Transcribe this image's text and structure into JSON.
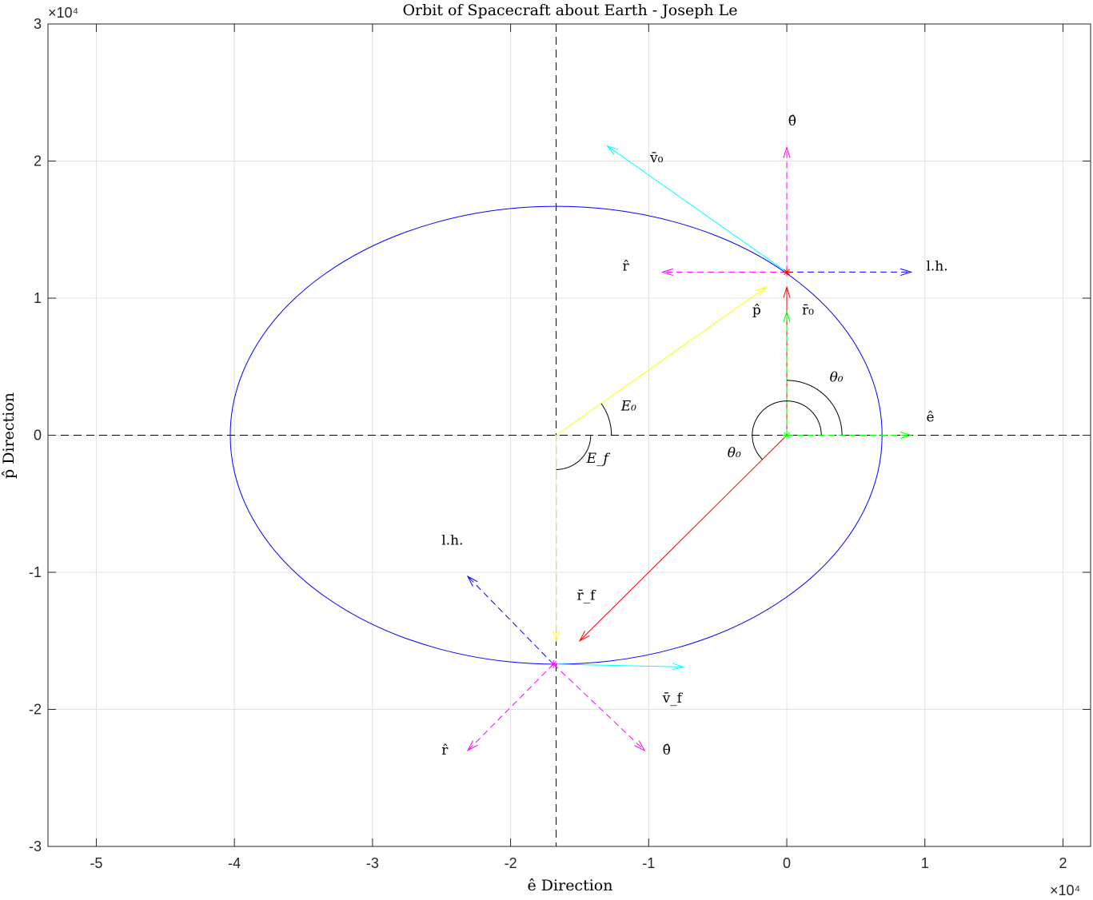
{
  "chart_data": {
    "type": "line",
    "title": "Orbit of Spacecraft about Earth - Joseph Le",
    "xlabel": "ê Direction",
    "ylabel": "p̂ Direction",
    "x_exponent_label": "×10⁴",
    "y_exponent_label": "×10⁴",
    "xlim": [
      -53500,
      22000
    ],
    "ylim": [
      -30000,
      30000
    ],
    "grid": true,
    "xticks": [
      -50000,
      -40000,
      -30000,
      -20000,
      -10000,
      0,
      10000,
      20000
    ],
    "xtick_labels": [
      "-5",
      "-4",
      "-3",
      "-2",
      "-1",
      "0",
      "1",
      "2"
    ],
    "yticks": [
      -30000,
      -20000,
      -10000,
      0,
      10000,
      20000,
      30000
    ],
    "ytick_labels": [
      "-3",
      "-2",
      "-1",
      "0",
      "1",
      "2",
      "3"
    ],
    "orbit": {
      "center_x": -16700,
      "center_y": 0,
      "semi_major": 23600,
      "semi_minor": 16700,
      "color": "#0000ff"
    },
    "axes_lines": [
      {
        "name": "e-axis",
        "x": [
          -53500,
          22000
        ],
        "y": [
          0,
          0
        ],
        "color": "#000000",
        "dashed": true
      },
      {
        "name": "p-axis",
        "x": [
          -16700,
          -16700
        ],
        "y": [
          30000,
          -30000
        ],
        "color": "#000000",
        "dashed": true
      }
    ],
    "markers": [
      {
        "name": "focus",
        "x": 0,
        "y": 0,
        "color": "#00ff00"
      },
      {
        "name": "initial-position",
        "x": 0,
        "y": 11900,
        "color": "#ff0000"
      },
      {
        "name": "final-position",
        "x": -16900,
        "y": -16700,
        "color": "#ff00ff"
      }
    ],
    "vectors": [
      {
        "name": "velocity-initial",
        "from": [
          0,
          11900
        ],
        "to": [
          -13000,
          21100
        ],
        "color": "#00ffff",
        "dashed": false
      },
      {
        "name": "theta-hat-initial",
        "from": [
          0,
          11900
        ],
        "to": [
          0,
          21000
        ],
        "color": "#ff00ff",
        "dashed": true
      },
      {
        "name": "r-hat-initial",
        "from": [
          0,
          11900
        ],
        "to": [
          -9000,
          11900
        ],
        "color": "#ff00ff",
        "dashed": true
      },
      {
        "name": "local-horizontal-initial",
        "from": [
          0,
          11900
        ],
        "to": [
          9000,
          11900
        ],
        "color": "#0000ff",
        "dashed": true
      },
      {
        "name": "p-hat-vector",
        "from": [
          -16700,
          0
        ],
        "to": [
          -1500,
          10800
        ],
        "color": "#ffff00",
        "dashed": false
      },
      {
        "name": "r-initial-vector",
        "from": [
          0,
          0
        ],
        "to": [
          0,
          10800
        ],
        "color": "#ff0000",
        "dashed": false
      },
      {
        "name": "p-hat-focus",
        "from": [
          0,
          0
        ],
        "to": [
          0,
          9000
        ],
        "color": "#00ff00",
        "dashed": true
      },
      {
        "name": "e-hat-focus",
        "from": [
          0,
          0
        ],
        "to": [
          9000,
          0
        ],
        "color": "#00ff00",
        "dashed": true
      },
      {
        "name": "r-final-vector",
        "from": [
          0,
          0
        ],
        "to": [
          -15000,
          -15000
        ],
        "color": "#ff0000",
        "dashed": false
      },
      {
        "name": "yellow-down",
        "from": [
          -16700,
          0
        ],
        "to": [
          -16700,
          -15000
        ],
        "color": "#ffff00",
        "dashed": false
      },
      {
        "name": "velocity-final",
        "from": [
          -16900,
          -16700
        ],
        "to": [
          -7500,
          -16900
        ],
        "color": "#00ffff",
        "dashed": false
      },
      {
        "name": "local-horizontal-final",
        "from": [
          -16900,
          -16700
        ],
        "to": [
          -23100,
          -10300
        ],
        "color": "#0000ff",
        "dashed": true
      },
      {
        "name": "r-hat-final",
        "from": [
          -16900,
          -16700
        ],
        "to": [
          -23100,
          -23000
        ],
        "color": "#ff00ff",
        "dashed": true
      },
      {
        "name": "theta-hat-final",
        "from": [
          -16900,
          -16700
        ],
        "to": [
          -10300,
          -23000
        ],
        "color": "#ff00ff",
        "dashed": true
      }
    ],
    "arcs": [
      {
        "name": "theta0-arc-outer",
        "cx": 0,
        "cy": 0,
        "rx": 4000,
        "ry": 4000,
        "start_deg": 0,
        "end_deg": 90
      },
      {
        "name": "theta0-arc-inner",
        "cx": 0,
        "cy": 0,
        "rx": 2500,
        "ry": 2500,
        "start_deg": 0,
        "end_deg": 225
      },
      {
        "name": "E0-arc",
        "cx": -16700,
        "cy": 0,
        "rx": 4000,
        "ry": 4000,
        "start_deg": 0,
        "end_deg": 35.4
      },
      {
        "name": "Ef-arc",
        "cx": -16700,
        "cy": 0,
        "rx": 2500,
        "ry": 2500,
        "start_deg": -90,
        "end_deg": 0
      }
    ],
    "annotations": [
      {
        "name": "label-theta-hat-initial",
        "text": "θ̂",
        "x": 100,
        "y": 22600,
        "italic": false
      },
      {
        "name": "label-v0",
        "text": "v̄₀",
        "x": -9900,
        "y": 19900,
        "italic": false
      },
      {
        "name": "label-r-hat-initial",
        "text": "r̂",
        "x": -11900,
        "y": 12000,
        "italic": false
      },
      {
        "name": "label-lh-initial",
        "text": "l.h.",
        "x": 10100,
        "y": 12000,
        "italic": false
      },
      {
        "name": "label-p-hat",
        "text": "p̂",
        "x": -2500,
        "y": 8800,
        "italic": false
      },
      {
        "name": "label-r0",
        "text": "r̄₀",
        "x": 1100,
        "y": 8800,
        "italic": false
      },
      {
        "name": "label-theta0-upper",
        "text": "θ₀",
        "x": 3100,
        "y": 3900,
        "italic": true
      },
      {
        "name": "label-e-hat",
        "text": "ê",
        "x": 10100,
        "y": 1000,
        "italic": false
      },
      {
        "name": "label-E0",
        "text": "E₀",
        "x": -12000,
        "y": 1800,
        "italic": true
      },
      {
        "name": "label-Ef",
        "text": "E_f",
        "x": -14500,
        "y": -2000,
        "italic": true
      },
      {
        "name": "label-theta0-lower",
        "text": "θ₀",
        "x": -4300,
        "y": -1600,
        "italic": true
      },
      {
        "name": "label-lh-final",
        "text": "l.h.",
        "x": -25000,
        "y": -8000,
        "italic": false
      },
      {
        "name": "label-rf",
        "text": "r̄_f",
        "x": -15200,
        "y": -12000,
        "italic": false
      },
      {
        "name": "label-vf",
        "text": "v̄_f",
        "x": -9000,
        "y": -19500,
        "italic": false
      },
      {
        "name": "label-r-hat-final",
        "text": "r̂",
        "x": -25000,
        "y": -23300,
        "italic": false
      },
      {
        "name": "label-theta-hat-final",
        "text": "θ̂",
        "x": -9000,
        "y": -23300,
        "italic": false
      }
    ]
  }
}
